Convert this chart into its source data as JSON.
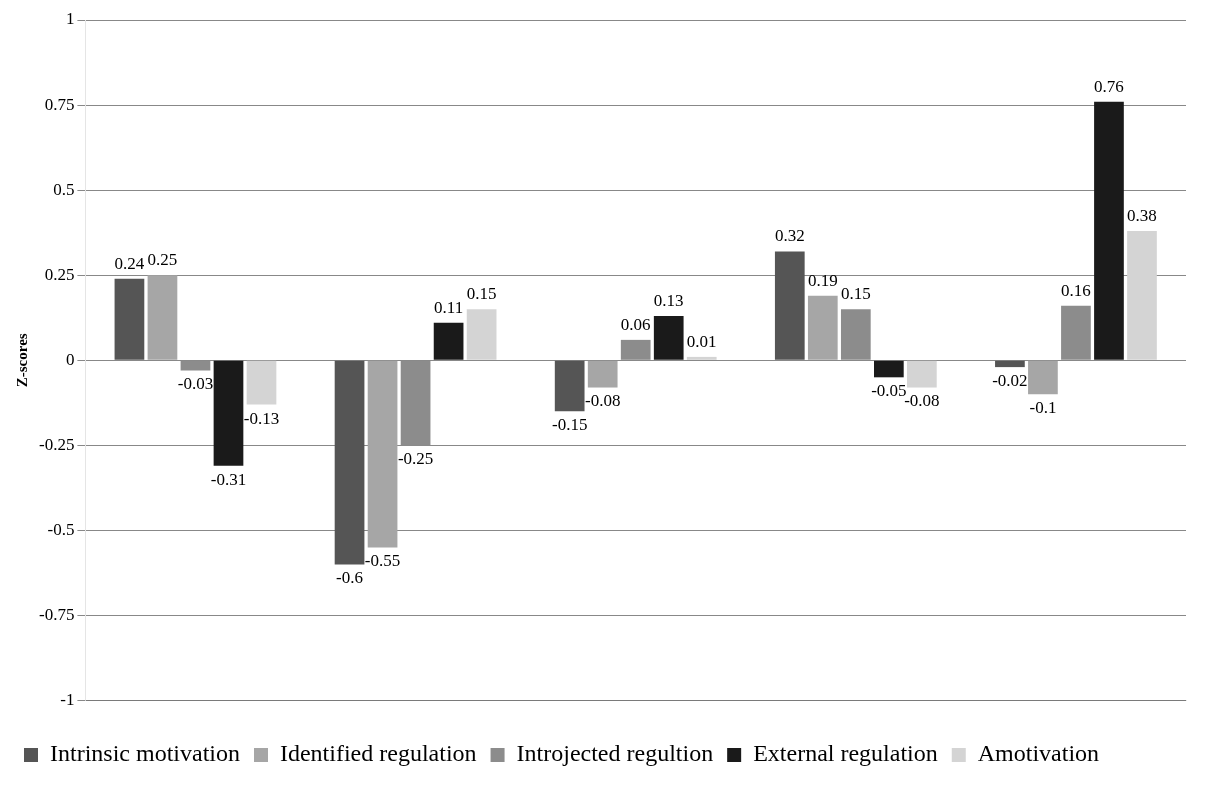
{
  "chart_data": {
    "type": "bar",
    "ylabel": "Z-scores",
    "categories": [
      null,
      null,
      null,
      null,
      null
    ],
    "series": [
      {
        "name": "Intrinsic motivation",
        "color": "#555555",
        "values": [
          0.24,
          -0.6,
          -0.15,
          0.32,
          -0.02
        ]
      },
      {
        "name": "Identified regulation",
        "color": "#a6a6a6",
        "values": [
          0.25,
          -0.55,
          -0.08,
          0.19,
          -0.1
        ]
      },
      {
        "name": "Introjected regultion",
        "color": "#8c8c8c",
        "values": [
          -0.03,
          -0.25,
          0.06,
          0.15,
          0.16
        ]
      },
      {
        "name": "External regulation",
        "color": "#1a1a1a",
        "values": [
          -0.31,
          0.11,
          0.13,
          -0.05,
          0.76
        ]
      },
      {
        "name": "Amotivation",
        "color": "#d4d4d4",
        "values": [
          -0.13,
          0.15,
          0.01,
          -0.08,
          0.38
        ]
      }
    ],
    "ylim": [
      -1,
      1
    ],
    "yticks": [
      -1,
      -0.75,
      -0.5,
      -0.25,
      0,
      0.25,
      0.5,
      0.75,
      1
    ],
    "grid": "y",
    "legend": "bottom",
    "data_labels": true
  }
}
